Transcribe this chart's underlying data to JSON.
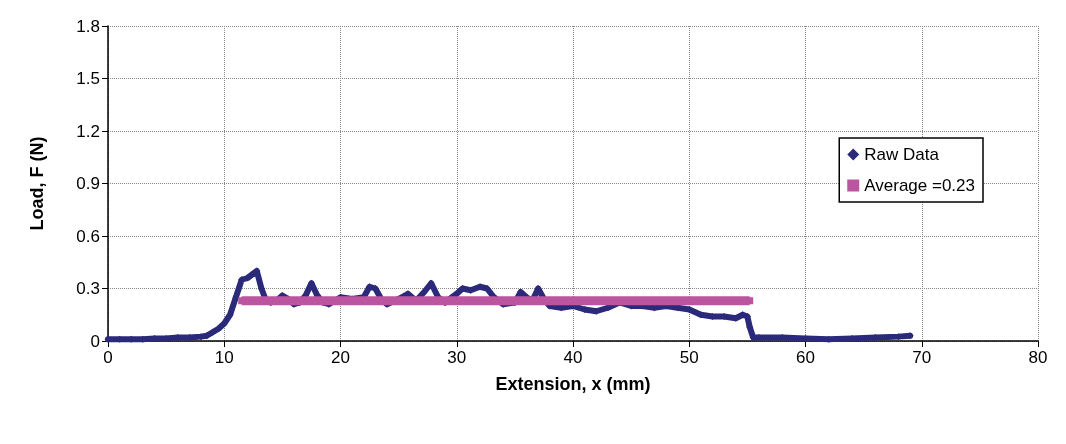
{
  "chart_data": {
    "type": "line",
    "xlabel": "Extension, x (mm)",
    "ylabel": "Load, F (N)",
    "xlim": [
      0,
      80
    ],
    "xticks": [
      0,
      10,
      20,
      30,
      40,
      50,
      60,
      70,
      80
    ],
    "ylim": [
      0,
      1.8
    ],
    "yticks": [
      0,
      0.3,
      0.6,
      0.9,
      1.2,
      1.5,
      1.8
    ],
    "grid": true,
    "legend": "right",
    "series": [
      {
        "name": "Raw Data",
        "color": "#2b2a7a",
        "marker": "diamond",
        "x": [
          0,
          1,
          2,
          3,
          4,
          5,
          6,
          7,
          8,
          8.5,
          9,
          9.5,
          10,
          10.5,
          11,
          11.5,
          12,
          12.4,
          12.8,
          13.2,
          13.6,
          14,
          14.5,
          15,
          15.5,
          16,
          16.5,
          17,
          17.5,
          18,
          18.5,
          19,
          20,
          21,
          22,
          22.5,
          23,
          23.5,
          24,
          25,
          25.8,
          26.5,
          27.2,
          27.8,
          28.4,
          29,
          30,
          30.5,
          31.2,
          32,
          32.6,
          33.2,
          34,
          35,
          35.5,
          36,
          36.5,
          37,
          37.5,
          38,
          39,
          40,
          41,
          42,
          43,
          44,
          45,
          46,
          47,
          48,
          49,
          50,
          51,
          52,
          53,
          54,
          54.6,
          55,
          55.2,
          55.5,
          56,
          58,
          60,
          62,
          64,
          66,
          68,
          69
        ],
        "values": [
          0.01,
          0.01,
          0.01,
          0.01,
          0.015,
          0.015,
          0.02,
          0.02,
          0.025,
          0.03,
          0.05,
          0.07,
          0.1,
          0.15,
          0.25,
          0.35,
          0.36,
          0.38,
          0.4,
          0.3,
          0.23,
          0.22,
          0.23,
          0.26,
          0.24,
          0.21,
          0.22,
          0.26,
          0.33,
          0.26,
          0.22,
          0.21,
          0.25,
          0.24,
          0.25,
          0.31,
          0.3,
          0.24,
          0.21,
          0.24,
          0.27,
          0.23,
          0.28,
          0.33,
          0.25,
          0.22,
          0.27,
          0.3,
          0.29,
          0.31,
          0.3,
          0.25,
          0.21,
          0.22,
          0.28,
          0.25,
          0.23,
          0.3,
          0.24,
          0.2,
          0.19,
          0.2,
          0.18,
          0.17,
          0.19,
          0.22,
          0.2,
          0.2,
          0.19,
          0.2,
          0.19,
          0.18,
          0.15,
          0.14,
          0.14,
          0.13,
          0.15,
          0.14,
          0.08,
          0.02,
          0.02,
          0.02,
          0.015,
          0.01,
          0.015,
          0.02,
          0.025,
          0.03
        ]
      },
      {
        "name": "Average =0.23",
        "color": "#bb55a0",
        "marker": "square",
        "x": [
          11.5,
          55.2
        ],
        "values": [
          0.23,
          0.23
        ]
      }
    ]
  }
}
